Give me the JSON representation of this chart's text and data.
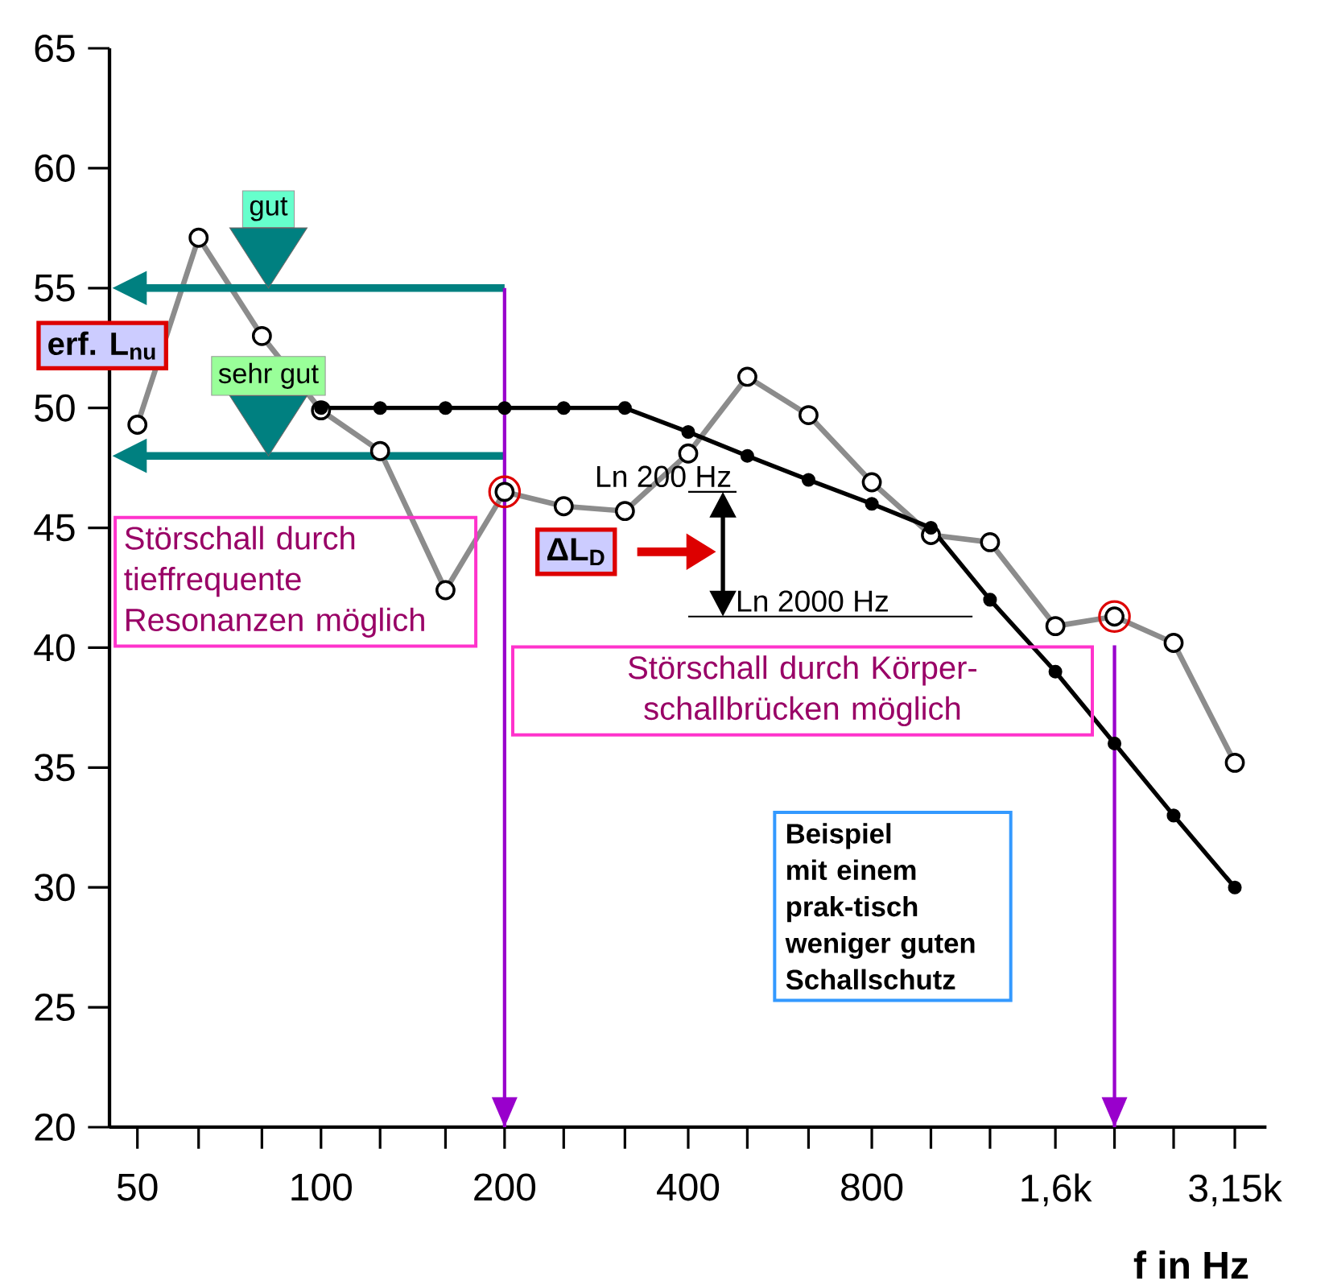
{
  "chart_data": {
    "type": "line",
    "xlabel": "f in Hz",
    "log": "x",
    "xlim": [
      45,
      3550
    ],
    "ylim": [
      20,
      65
    ],
    "xticks": [
      50,
      {
        "value": 63,
        "label": null
      },
      {
        "value": 80,
        "label": null
      },
      100,
      {
        "value": 125,
        "label": null
      },
      {
        "value": 160,
        "label": null
      },
      200,
      {
        "value": 250,
        "label": null
      },
      {
        "value": 315,
        "label": null
      },
      400,
      {
        "value": 500,
        "label": null
      },
      {
        "value": 630,
        "label": null
      },
      800,
      {
        "value": 1000,
        "label": null
      },
      {
        "value": 1250,
        "label": null
      },
      {
        "value": 1600,
        "label": "1,6k"
      },
      {
        "value": 2000,
        "label": null
      },
      {
        "value": 2500,
        "label": null
      },
      {
        "value": 3150,
        "label": "3,15k"
      }
    ],
    "yticks": [
      20,
      25,
      30,
      35,
      40,
      45,
      50,
      55,
      60,
      65
    ],
    "marker": "circle",
    "series": [
      {
        "color": "#8c8c8c",
        "x": [
          50,
          63,
          80,
          100,
          125,
          160,
          200,
          250,
          315,
          400,
          500,
          630,
          800,
          1000,
          1250,
          1600,
          2000,
          2500,
          3150
        ],
        "values": [
          49.3,
          57.1,
          53.0,
          49.9,
          48.2,
          42.4,
          46.5,
          45.9,
          45.7,
          48.1,
          51.3,
          49.7,
          46.9,
          44.7,
          44.4,
          40.9,
          41.3,
          40.2,
          35.2
        ]
      },
      {
        "color": "#000000",
        "x": [
          100,
          125,
          160,
          200,
          250,
          315,
          400,
          500,
          630,
          800,
          1000,
          1250,
          1600,
          2000,
          2500,
          3150
        ],
        "values": [
          50,
          50,
          50,
          50,
          50,
          50,
          49,
          48,
          47,
          46,
          45,
          42,
          39,
          36,
          33,
          30
        ]
      }
    ],
    "ref_lines": [
      {
        "axis": "y",
        "value": 55,
        "label": "gut",
        "color": "#008080"
      },
      {
        "axis": "y",
        "value": 48,
        "label": "sehr gut",
        "color": "#008080"
      },
      {
        "axis": "x",
        "value": 200,
        "color": "#9900cc"
      },
      {
        "axis": "x",
        "value": 2000,
        "color": "#9900cc"
      }
    ],
    "annotations": [
      "erf. L$_{nu}$",
      "ΔL$_{D}$",
      "Störschall durch tieffrequente Resonanzen möglich",
      "Störschall durch Körper-schallbrücken möglich",
      "Beispiel mit einem prak-tisch weniger guten Schallschutz",
      "Ln 200 Hz",
      "Ln 2000 Hz"
    ]
  }
}
